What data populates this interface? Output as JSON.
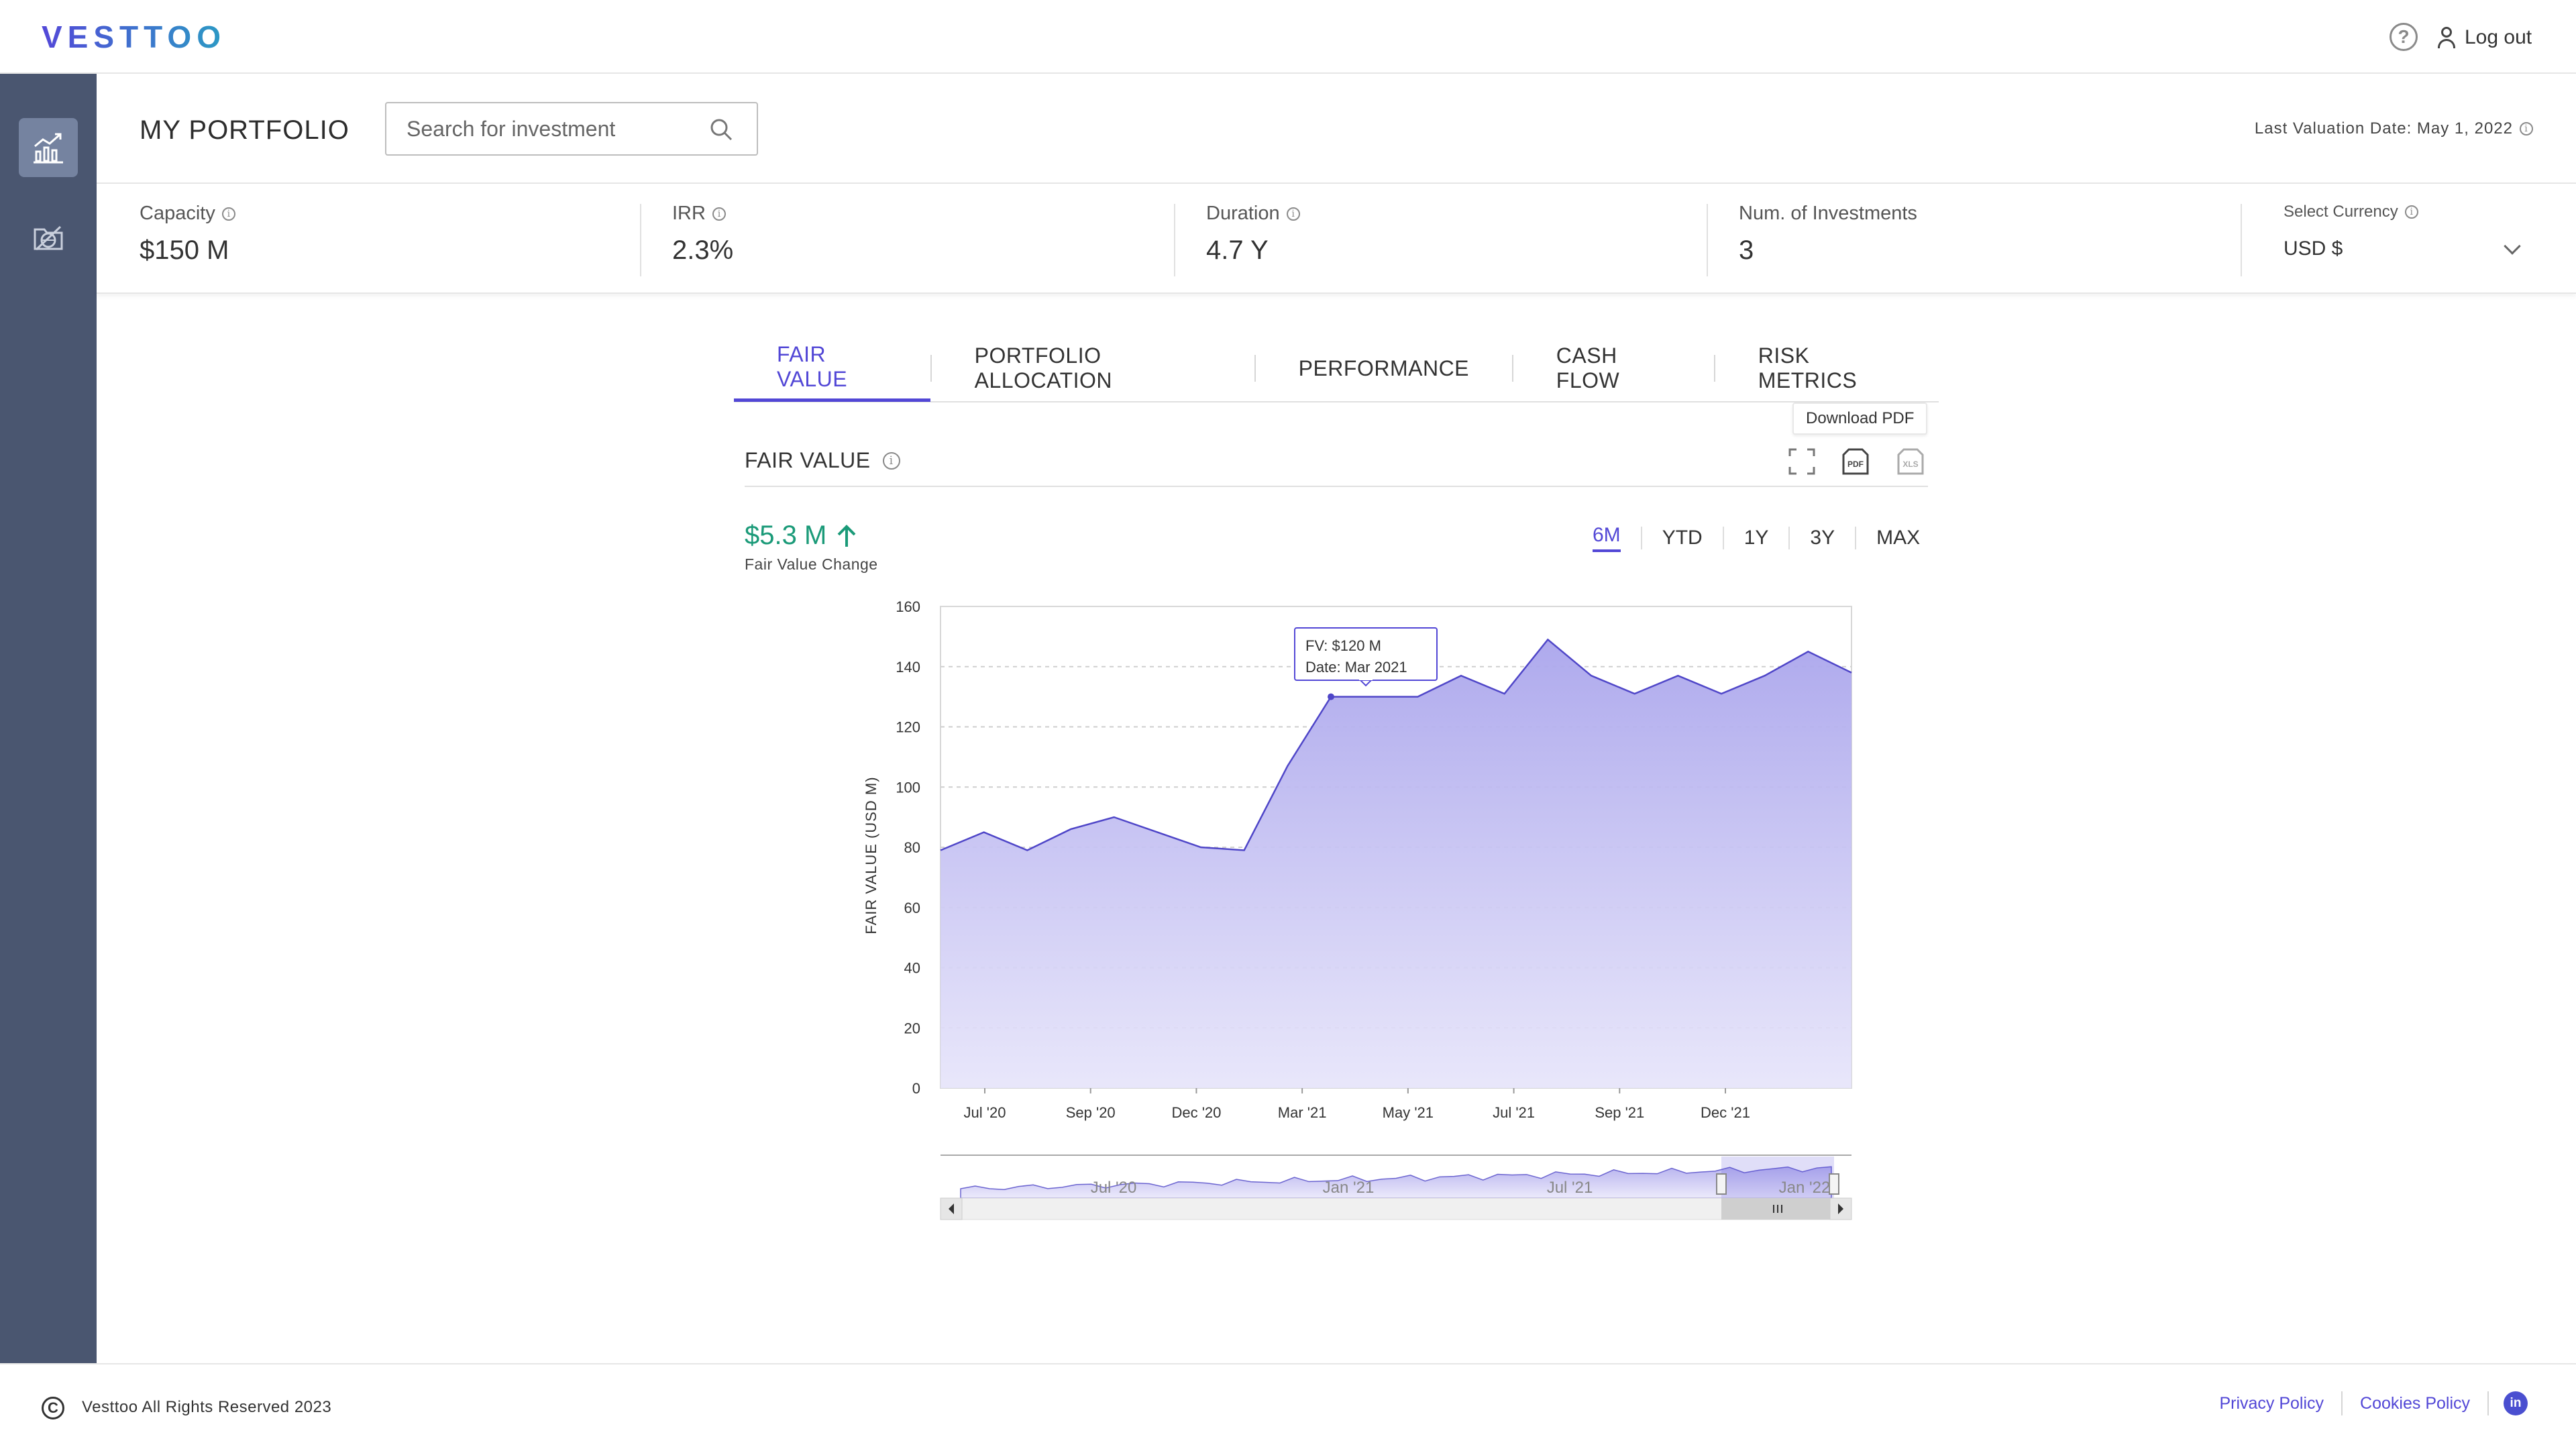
{
  "app": {
    "logo": "VESTTOO"
  },
  "header": {
    "help_icon": "question-circle-icon",
    "logout_label": "Log out"
  },
  "page": {
    "title": "MY PORTFOLIO",
    "search_placeholder": "Search for investment",
    "valuation_label": "Last Valuation Date: May 1, 2022"
  },
  "kpis": {
    "capacity": {
      "label": "Capacity",
      "value": "$150 M"
    },
    "irr": {
      "label": "IRR",
      "value": "2.3%"
    },
    "duration": {
      "label": "Duration",
      "value": "4.7 Y"
    },
    "num_investments": {
      "label": "Num. of Investments",
      "value": "3"
    },
    "currency": {
      "label": "Select Currency",
      "value": "USD $"
    }
  },
  "tabs": [
    "FAIR VALUE",
    "PORTFOLIO ALLOCATION",
    "PERFORMANCE",
    "CASH FLOW",
    "RISK METRICS"
  ],
  "active_tab": "FAIR VALUE",
  "card": {
    "title": "FAIR VALUE",
    "download_tooltip": "Download PDF",
    "pdf_label": "PDF",
    "xls_label": "XLS",
    "change_value": "$5.3 M",
    "change_label": "Fair Value Change",
    "ranges": [
      "6M",
      "YTD",
      "1Y",
      "3Y",
      "MAX"
    ],
    "active_range": "6M"
  },
  "colors": {
    "accent": "#5247d6",
    "positive": "#1a9a78",
    "sidebar": "#4a5670",
    "area_fill": "#b7b3ee"
  },
  "chart_data": {
    "type": "area",
    "ylabel": "FAIR VALUE (USD M)",
    "ylim": [
      0,
      160
    ],
    "yticks": [
      0,
      20,
      40,
      60,
      80,
      100,
      120,
      140,
      160
    ],
    "xticks": [
      "Jul '20",
      "Sep '20",
      "Dec '20",
      "Mar '21",
      "May '21",
      "Jul '21",
      "Sep '21",
      "Dec '21"
    ],
    "grid": true,
    "series": [
      {
        "values": [
          79,
          85,
          79,
          86,
          90,
          85,
          80,
          79,
          107,
          130,
          130,
          130,
          137,
          131,
          149,
          137,
          131,
          137,
          131,
          137,
          145,
          138
        ]
      }
    ],
    "tooltip": {
      "fv": "FV: $120 M",
      "date": "Date: Mar 2021"
    },
    "navigator": {
      "labels": [
        "Jul '20",
        "Jan '21",
        "Jul '21",
        "Jan '22"
      ]
    }
  },
  "footer": {
    "copyright": "Vesttoo All Rights Reserved 2023",
    "links": [
      "Privacy Policy",
      "Cookies Policy"
    ],
    "linkedin": "in"
  }
}
